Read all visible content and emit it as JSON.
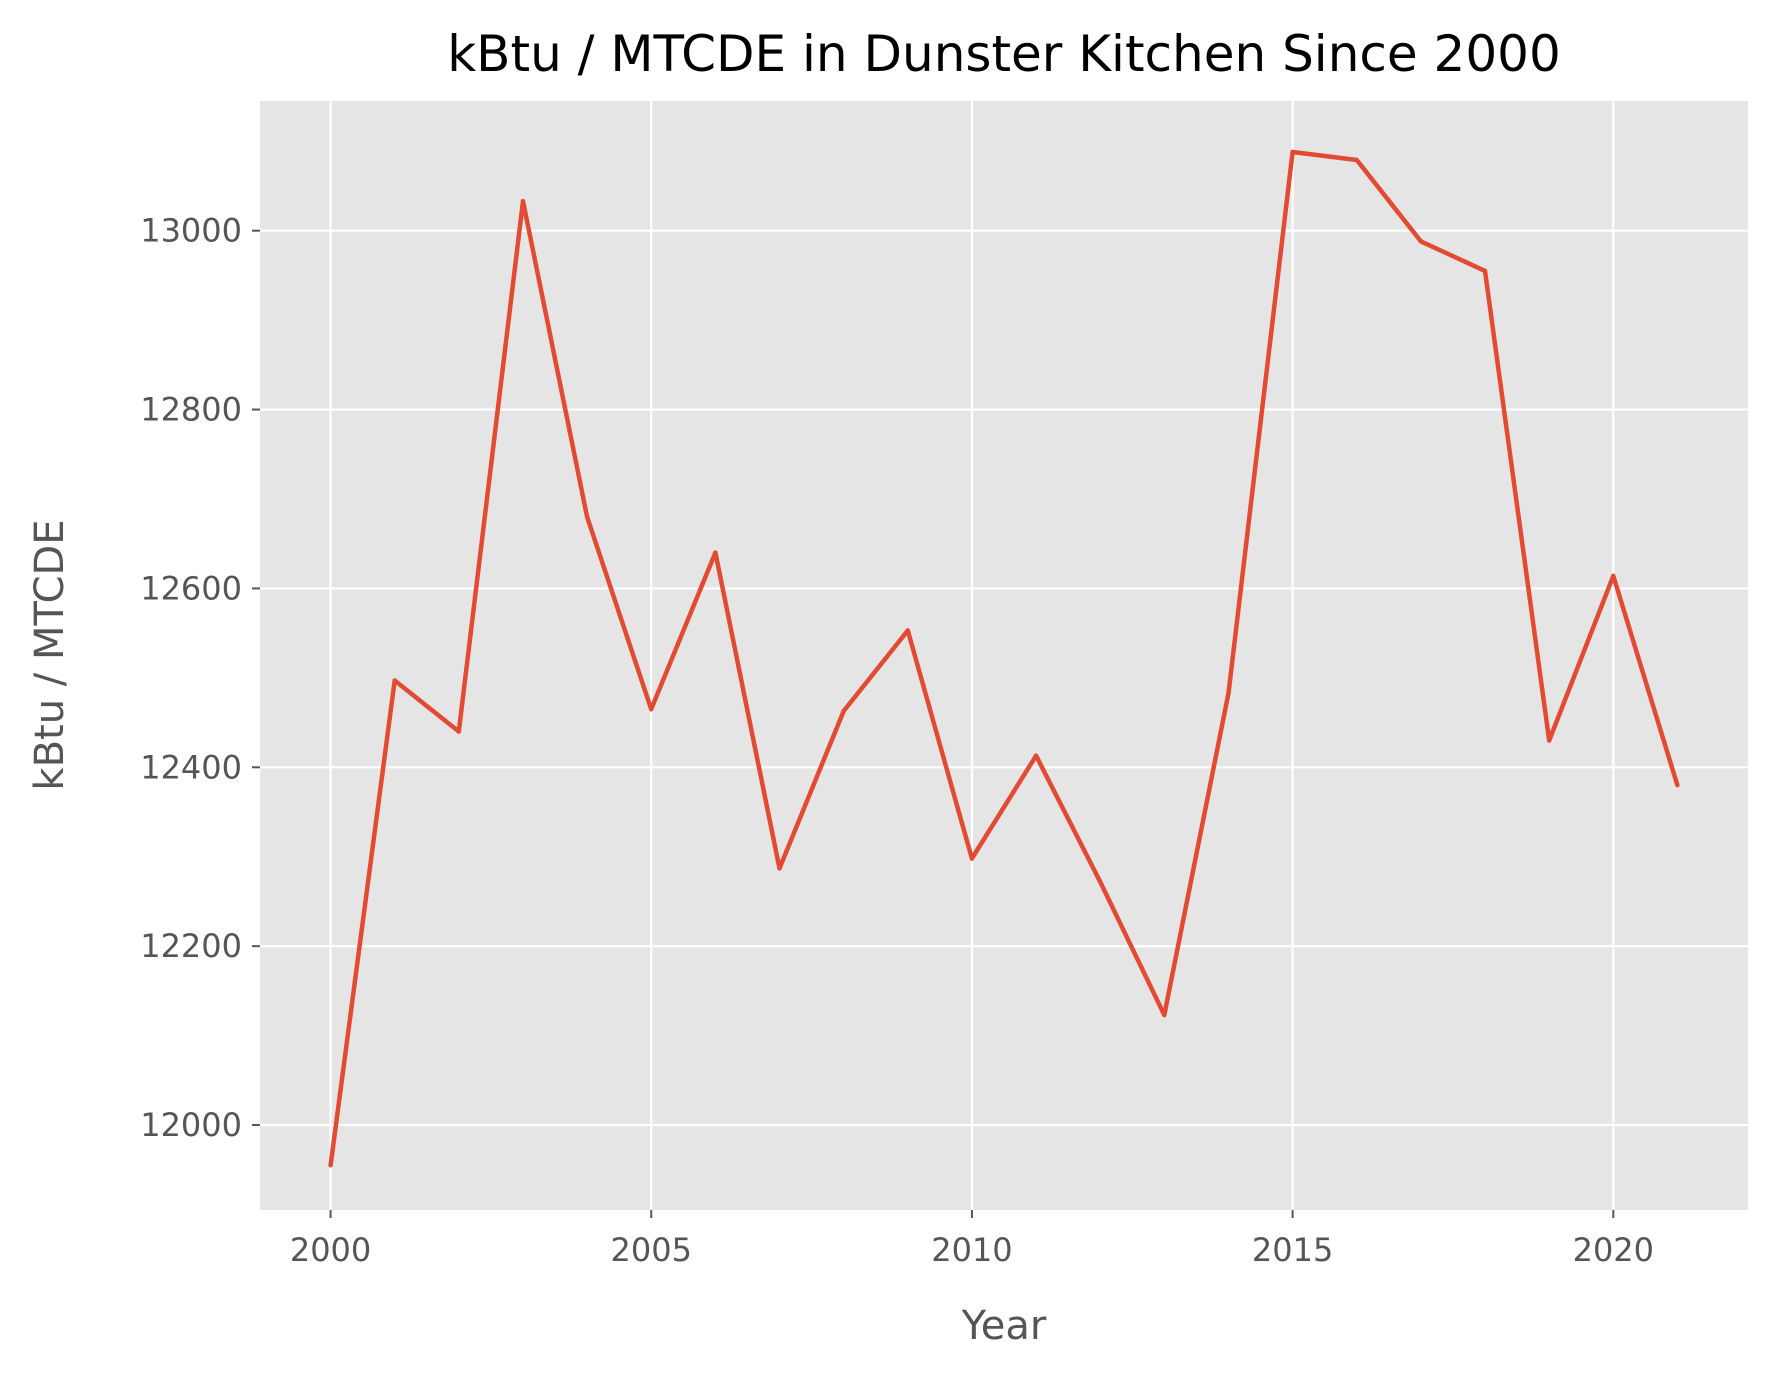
{
  "chart_data": {
    "type": "line",
    "title": "kBtu / MTCDE in Dunster Kitchen Since 2000",
    "xlabel": "Year",
    "ylabel": "kBtu / MTCDE",
    "xlim": [
      1998.9,
      2022.1
    ],
    "ylim": [
      11905,
      13145
    ],
    "xticks": [
      2000,
      2005,
      2010,
      2015,
      2020
    ],
    "yticks": [
      12000,
      12200,
      12400,
      12600,
      12800,
      13000
    ],
    "grid": true,
    "legend": "none",
    "style": {
      "background": "#e5e5e5",
      "grid_color": "#ffffff",
      "line_color": "#e24a33"
    },
    "series": [
      {
        "x": [
          2000,
          2001,
          2002,
          2003,
          2004,
          2005,
          2006,
          2007,
          2008,
          2009,
          2010,
          2011,
          2012,
          2013,
          2014,
          2015,
          2016,
          2017,
          2018,
          2019,
          2020,
          2021
        ],
        "values": [
          11955,
          12497,
          12440,
          13033,
          12680,
          12465,
          12640,
          12287,
          12463,
          12553,
          12298,
          12413,
          12272,
          12123,
          12483,
          13088,
          13079,
          12988,
          12955,
          12430,
          12614,
          12380
        ]
      }
    ]
  }
}
